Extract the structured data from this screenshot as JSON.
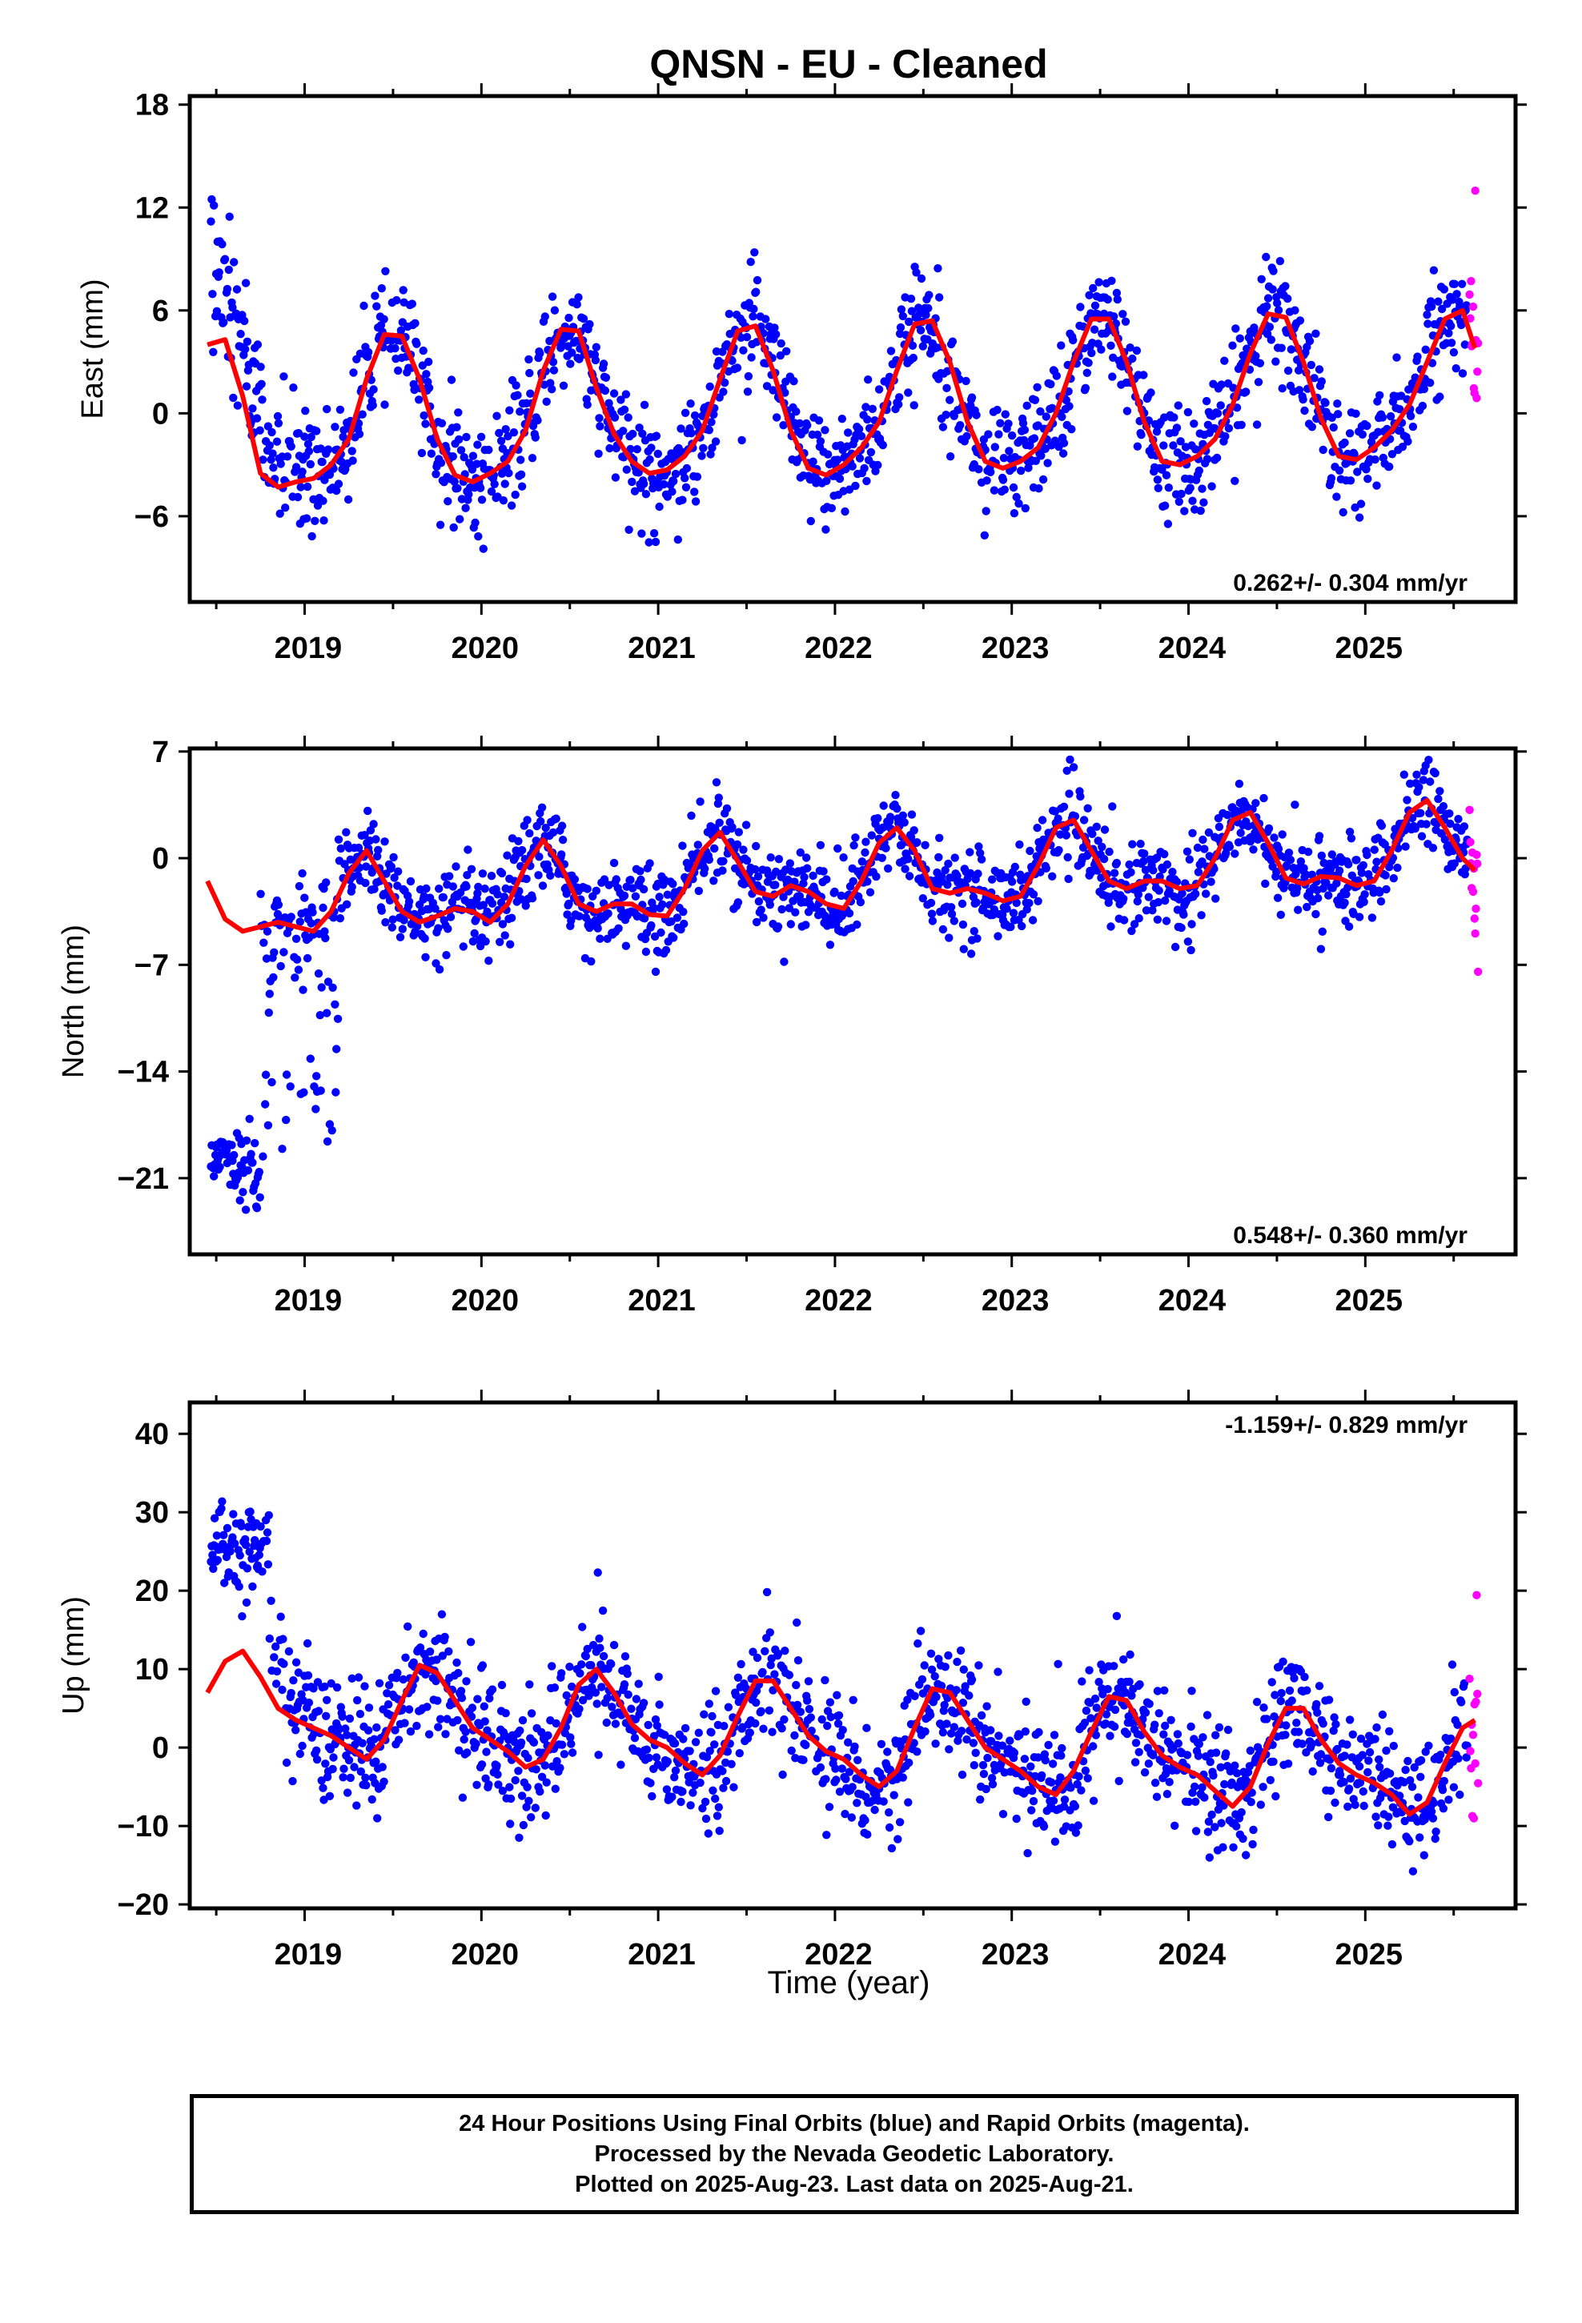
{
  "chart_data": [
    {
      "type": "scatter",
      "title": "QNSN  - EU - Cleaned",
      "ylabel": "East (mm)",
      "xlabel": "",
      "rate_text": "0.262+/- 0.304 mm/yr",
      "xlim": [
        2018.35,
        2025.85
      ],
      "ylim": [
        -11,
        18.5
      ],
      "yticks": [
        18,
        12,
        6,
        0,
        -6
      ],
      "xticks": [
        2019,
        2020,
        2021,
        2022,
        2023,
        2024,
        2025
      ],
      "grid": false,
      "series": [
        {
          "name": "Final Orbits",
          "color": "#0000ff"
        },
        {
          "name": "Rapid Orbits",
          "color": "#ff00ff"
        },
        {
          "name": "model",
          "color": "#ff0000"
        }
      ],
      "model_points": [
        [
          2018.45,
          4.0
        ],
        [
          2018.55,
          4.3
        ],
        [
          2018.65,
          1.0
        ],
        [
          2018.75,
          -3.5
        ],
        [
          2018.85,
          -4.3
        ],
        [
          2018.95,
          -4.0
        ],
        [
          2019.05,
          -3.8
        ],
        [
          2019.15,
          -3.0
        ],
        [
          2019.25,
          -1.5
        ],
        [
          2019.35,
          2.0
        ],
        [
          2019.45,
          4.6
        ],
        [
          2019.55,
          4.5
        ],
        [
          2019.65,
          2.0
        ],
        [
          2019.75,
          -1.5
        ],
        [
          2019.85,
          -3.6
        ],
        [
          2019.95,
          -4.0
        ],
        [
          2020.05,
          -3.5
        ],
        [
          2020.15,
          -2.8
        ],
        [
          2020.25,
          -1.0
        ],
        [
          2020.35,
          2.5
        ],
        [
          2020.45,
          4.9
        ],
        [
          2020.55,
          4.8
        ],
        [
          2020.65,
          1.5
        ],
        [
          2020.75,
          -1.2
        ],
        [
          2020.85,
          -2.8
        ],
        [
          2020.95,
          -3.5
        ],
        [
          2021.05,
          -3.3
        ],
        [
          2021.15,
          -2.5
        ],
        [
          2021.25,
          -1.0
        ],
        [
          2021.35,
          2.0
        ],
        [
          2021.45,
          4.8
        ],
        [
          2021.55,
          5.1
        ],
        [
          2021.65,
          2.5
        ],
        [
          2021.75,
          -1.0
        ],
        [
          2021.85,
          -3.2
        ],
        [
          2021.95,
          -3.6
        ],
        [
          2022.05,
          -3.0
        ],
        [
          2022.15,
          -2.0
        ],
        [
          2022.25,
          -0.5
        ],
        [
          2022.35,
          2.5
        ],
        [
          2022.45,
          5.2
        ],
        [
          2022.55,
          5.4
        ],
        [
          2022.65,
          3.0
        ],
        [
          2022.75,
          -0.5
        ],
        [
          2022.85,
          -2.8
        ],
        [
          2022.95,
          -3.2
        ],
        [
          2023.05,
          -2.8
        ],
        [
          2023.15,
          -2.0
        ],
        [
          2023.25,
          0.0
        ],
        [
          2023.35,
          3.0
        ],
        [
          2023.45,
          5.5
        ],
        [
          2023.55,
          5.5
        ],
        [
          2023.65,
          3.0
        ],
        [
          2023.75,
          -0.5
        ],
        [
          2023.85,
          -2.8
        ],
        [
          2023.95,
          -3.0
        ],
        [
          2024.05,
          -2.5
        ],
        [
          2024.15,
          -1.5
        ],
        [
          2024.25,
          0.5
        ],
        [
          2024.35,
          3.5
        ],
        [
          2024.45,
          5.8
        ],
        [
          2024.55,
          5.6
        ],
        [
          2024.65,
          3.0
        ],
        [
          2024.75,
          -0.3
        ],
        [
          2024.85,
          -2.5
        ],
        [
          2024.95,
          -2.7
        ],
        [
          2025.05,
          -2.0
        ],
        [
          2025.15,
          -1.0
        ],
        [
          2025.25,
          0.5
        ],
        [
          2025.35,
          3.0
        ],
        [
          2025.45,
          5.5
        ],
        [
          2025.55,
          6.0
        ],
        [
          2025.62,
          3.8
        ]
      ]
    },
    {
      "type": "scatter",
      "ylabel": "North (mm)",
      "xlabel": "",
      "rate_text": "0.548+/- 0.360 mm/yr",
      "xlim": [
        2018.35,
        2025.85
      ],
      "ylim": [
        -26,
        7.2
      ],
      "yticks": [
        7,
        0,
        -7,
        -14,
        -21
      ],
      "xticks": [
        2019,
        2020,
        2021,
        2022,
        2023,
        2024,
        2025
      ],
      "grid": false,
      "model_points": [
        [
          2018.45,
          -1.5
        ],
        [
          2018.55,
          -4.0
        ],
        [
          2018.65,
          -4.8
        ],
        [
          2018.75,
          -4.5
        ],
        [
          2018.85,
          -4.2
        ],
        [
          2018.95,
          -4.5
        ],
        [
          2019.05,
          -4.8
        ],
        [
          2019.15,
          -3.5
        ],
        [
          2019.25,
          -1.0
        ],
        [
          2019.35,
          0.5
        ],
        [
          2019.45,
          -1.5
        ],
        [
          2019.55,
          -3.5
        ],
        [
          2019.65,
          -4.2
        ],
        [
          2019.75,
          -3.8
        ],
        [
          2019.85,
          -3.3
        ],
        [
          2019.95,
          -3.5
        ],
        [
          2020.05,
          -4.2
        ],
        [
          2020.15,
          -3.0
        ],
        [
          2020.25,
          -0.5
        ],
        [
          2020.35,
          1.2
        ],
        [
          2020.45,
          -0.5
        ],
        [
          2020.55,
          -3.0
        ],
        [
          2020.65,
          -3.5
        ],
        [
          2020.75,
          -3.0
        ],
        [
          2020.85,
          -3.0
        ],
        [
          2020.95,
          -3.7
        ],
        [
          2021.05,
          -3.8
        ],
        [
          2021.15,
          -2.0
        ],
        [
          2021.25,
          0.5
        ],
        [
          2021.35,
          1.7
        ],
        [
          2021.45,
          -0.2
        ],
        [
          2021.55,
          -2.2
        ],
        [
          2021.65,
          -2.5
        ],
        [
          2021.75,
          -1.8
        ],
        [
          2021.85,
          -2.2
        ],
        [
          2021.95,
          -3.0
        ],
        [
          2022.05,
          -3.3
        ],
        [
          2022.15,
          -1.5
        ],
        [
          2022.25,
          1.0
        ],
        [
          2022.35,
          2.0
        ],
        [
          2022.45,
          0.5
        ],
        [
          2022.55,
          -2.0
        ],
        [
          2022.65,
          -2.3
        ],
        [
          2022.75,
          -2.0
        ],
        [
          2022.85,
          -2.3
        ],
        [
          2022.95,
          -2.8
        ],
        [
          2023.05,
          -2.5
        ],
        [
          2023.15,
          -0.5
        ],
        [
          2023.25,
          2.0
        ],
        [
          2023.35,
          2.5
        ],
        [
          2023.45,
          0.5
        ],
        [
          2023.55,
          -1.5
        ],
        [
          2023.65,
          -2.0
        ],
        [
          2023.75,
          -1.5
        ],
        [
          2023.85,
          -1.5
        ],
        [
          2023.95,
          -2.0
        ],
        [
          2024.05,
          -1.8
        ],
        [
          2024.15,
          0.0
        ],
        [
          2024.25,
          2.5
        ],
        [
          2024.35,
          3.0
        ],
        [
          2024.45,
          1.0
        ],
        [
          2024.55,
          -1.3
        ],
        [
          2024.65,
          -1.7
        ],
        [
          2024.75,
          -1.2
        ],
        [
          2024.85,
          -1.3
        ],
        [
          2024.95,
          -1.8
        ],
        [
          2025.05,
          -1.5
        ],
        [
          2025.15,
          0.5
        ],
        [
          2025.25,
          3.0
        ],
        [
          2025.35,
          3.8
        ],
        [
          2025.45,
          2.0
        ],
        [
          2025.55,
          0.0
        ],
        [
          2025.62,
          -0.8
        ]
      ]
    },
    {
      "type": "scatter",
      "ylabel": "Up (mm)",
      "xlabel": "Time (year)",
      "rate_text": "-1.159+/- 0.829 mm/yr",
      "xlim": [
        2018.35,
        2025.85
      ],
      "ylim": [
        -20.5,
        44
      ],
      "yticks": [
        40,
        30,
        20,
        10,
        0,
        -10,
        -20
      ],
      "xticks": [
        2019,
        2020,
        2021,
        2022,
        2023,
        2024,
        2025
      ],
      "grid": false,
      "model_points": [
        [
          2018.45,
          7.0
        ],
        [
          2018.55,
          11.0
        ],
        [
          2018.65,
          12.3
        ],
        [
          2018.75,
          9.0
        ],
        [
          2018.85,
          5.0
        ],
        [
          2018.95,
          3.5
        ],
        [
          2019.05,
          2.5
        ],
        [
          2019.15,
          1.5
        ],
        [
          2019.25,
          0.0
        ],
        [
          2019.35,
          -1.5
        ],
        [
          2019.45,
          1.0
        ],
        [
          2019.55,
          6.0
        ],
        [
          2019.65,
          10.5
        ],
        [
          2019.75,
          9.5
        ],
        [
          2019.85,
          6.0
        ],
        [
          2019.95,
          2.5
        ],
        [
          2020.05,
          1.0
        ],
        [
          2020.15,
          -0.5
        ],
        [
          2020.25,
          -2.5
        ],
        [
          2020.35,
          -1.5
        ],
        [
          2020.45,
          2.5
        ],
        [
          2020.55,
          8.0
        ],
        [
          2020.65,
          10.0
        ],
        [
          2020.75,
          7.0
        ],
        [
          2020.85,
          3.0
        ],
        [
          2020.95,
          1.0
        ],
        [
          2021.05,
          0.0
        ],
        [
          2021.15,
          -2.0
        ],
        [
          2021.25,
          -3.5
        ],
        [
          2021.35,
          -1.0
        ],
        [
          2021.45,
          4.0
        ],
        [
          2021.55,
          8.5
        ],
        [
          2021.65,
          8.5
        ],
        [
          2021.75,
          5.0
        ],
        [
          2021.85,
          1.5
        ],
        [
          2021.95,
          -0.5
        ],
        [
          2022.05,
          -1.5
        ],
        [
          2022.15,
          -3.5
        ],
        [
          2022.25,
          -5.0
        ],
        [
          2022.35,
          -3.0
        ],
        [
          2022.45,
          2.5
        ],
        [
          2022.55,
          7.5
        ],
        [
          2022.65,
          7.0
        ],
        [
          2022.75,
          3.5
        ],
        [
          2022.85,
          0.0
        ],
        [
          2022.95,
          -1.5
        ],
        [
          2023.05,
          -3.0
        ],
        [
          2023.15,
          -5.0
        ],
        [
          2023.25,
          -6.0
        ],
        [
          2023.35,
          -3.0
        ],
        [
          2023.45,
          2.0
        ],
        [
          2023.55,
          6.5
        ],
        [
          2023.65,
          6.0
        ],
        [
          2023.75,
          2.0
        ],
        [
          2023.85,
          -1.0
        ],
        [
          2023.95,
          -2.5
        ],
        [
          2024.05,
          -3.5
        ],
        [
          2024.15,
          -5.5
        ],
        [
          2024.25,
          -7.5
        ],
        [
          2024.35,
          -5.0
        ],
        [
          2024.45,
          0.5
        ],
        [
          2024.55,
          5.0
        ],
        [
          2024.65,
          5.0
        ],
        [
          2024.75,
          1.0
        ],
        [
          2024.85,
          -2.0
        ],
        [
          2024.95,
          -3.5
        ],
        [
          2025.05,
          -4.5
        ],
        [
          2025.15,
          -6.0
        ],
        [
          2025.25,
          -8.5
        ],
        [
          2025.35,
          -7.0
        ],
        [
          2025.45,
          -2.0
        ],
        [
          2025.55,
          2.5
        ],
        [
          2025.62,
          3.5
        ]
      ]
    }
  ],
  "footer": {
    "line1": "24 Hour Positions Using Final Orbits (blue) and Rapid Orbits (magenta).",
    "line2": "Processed by the Nevada Geodetic Laboratory.",
    "line3": "Plotted on 2025-Aug-23. Last data on 2025-Aug-21."
  }
}
